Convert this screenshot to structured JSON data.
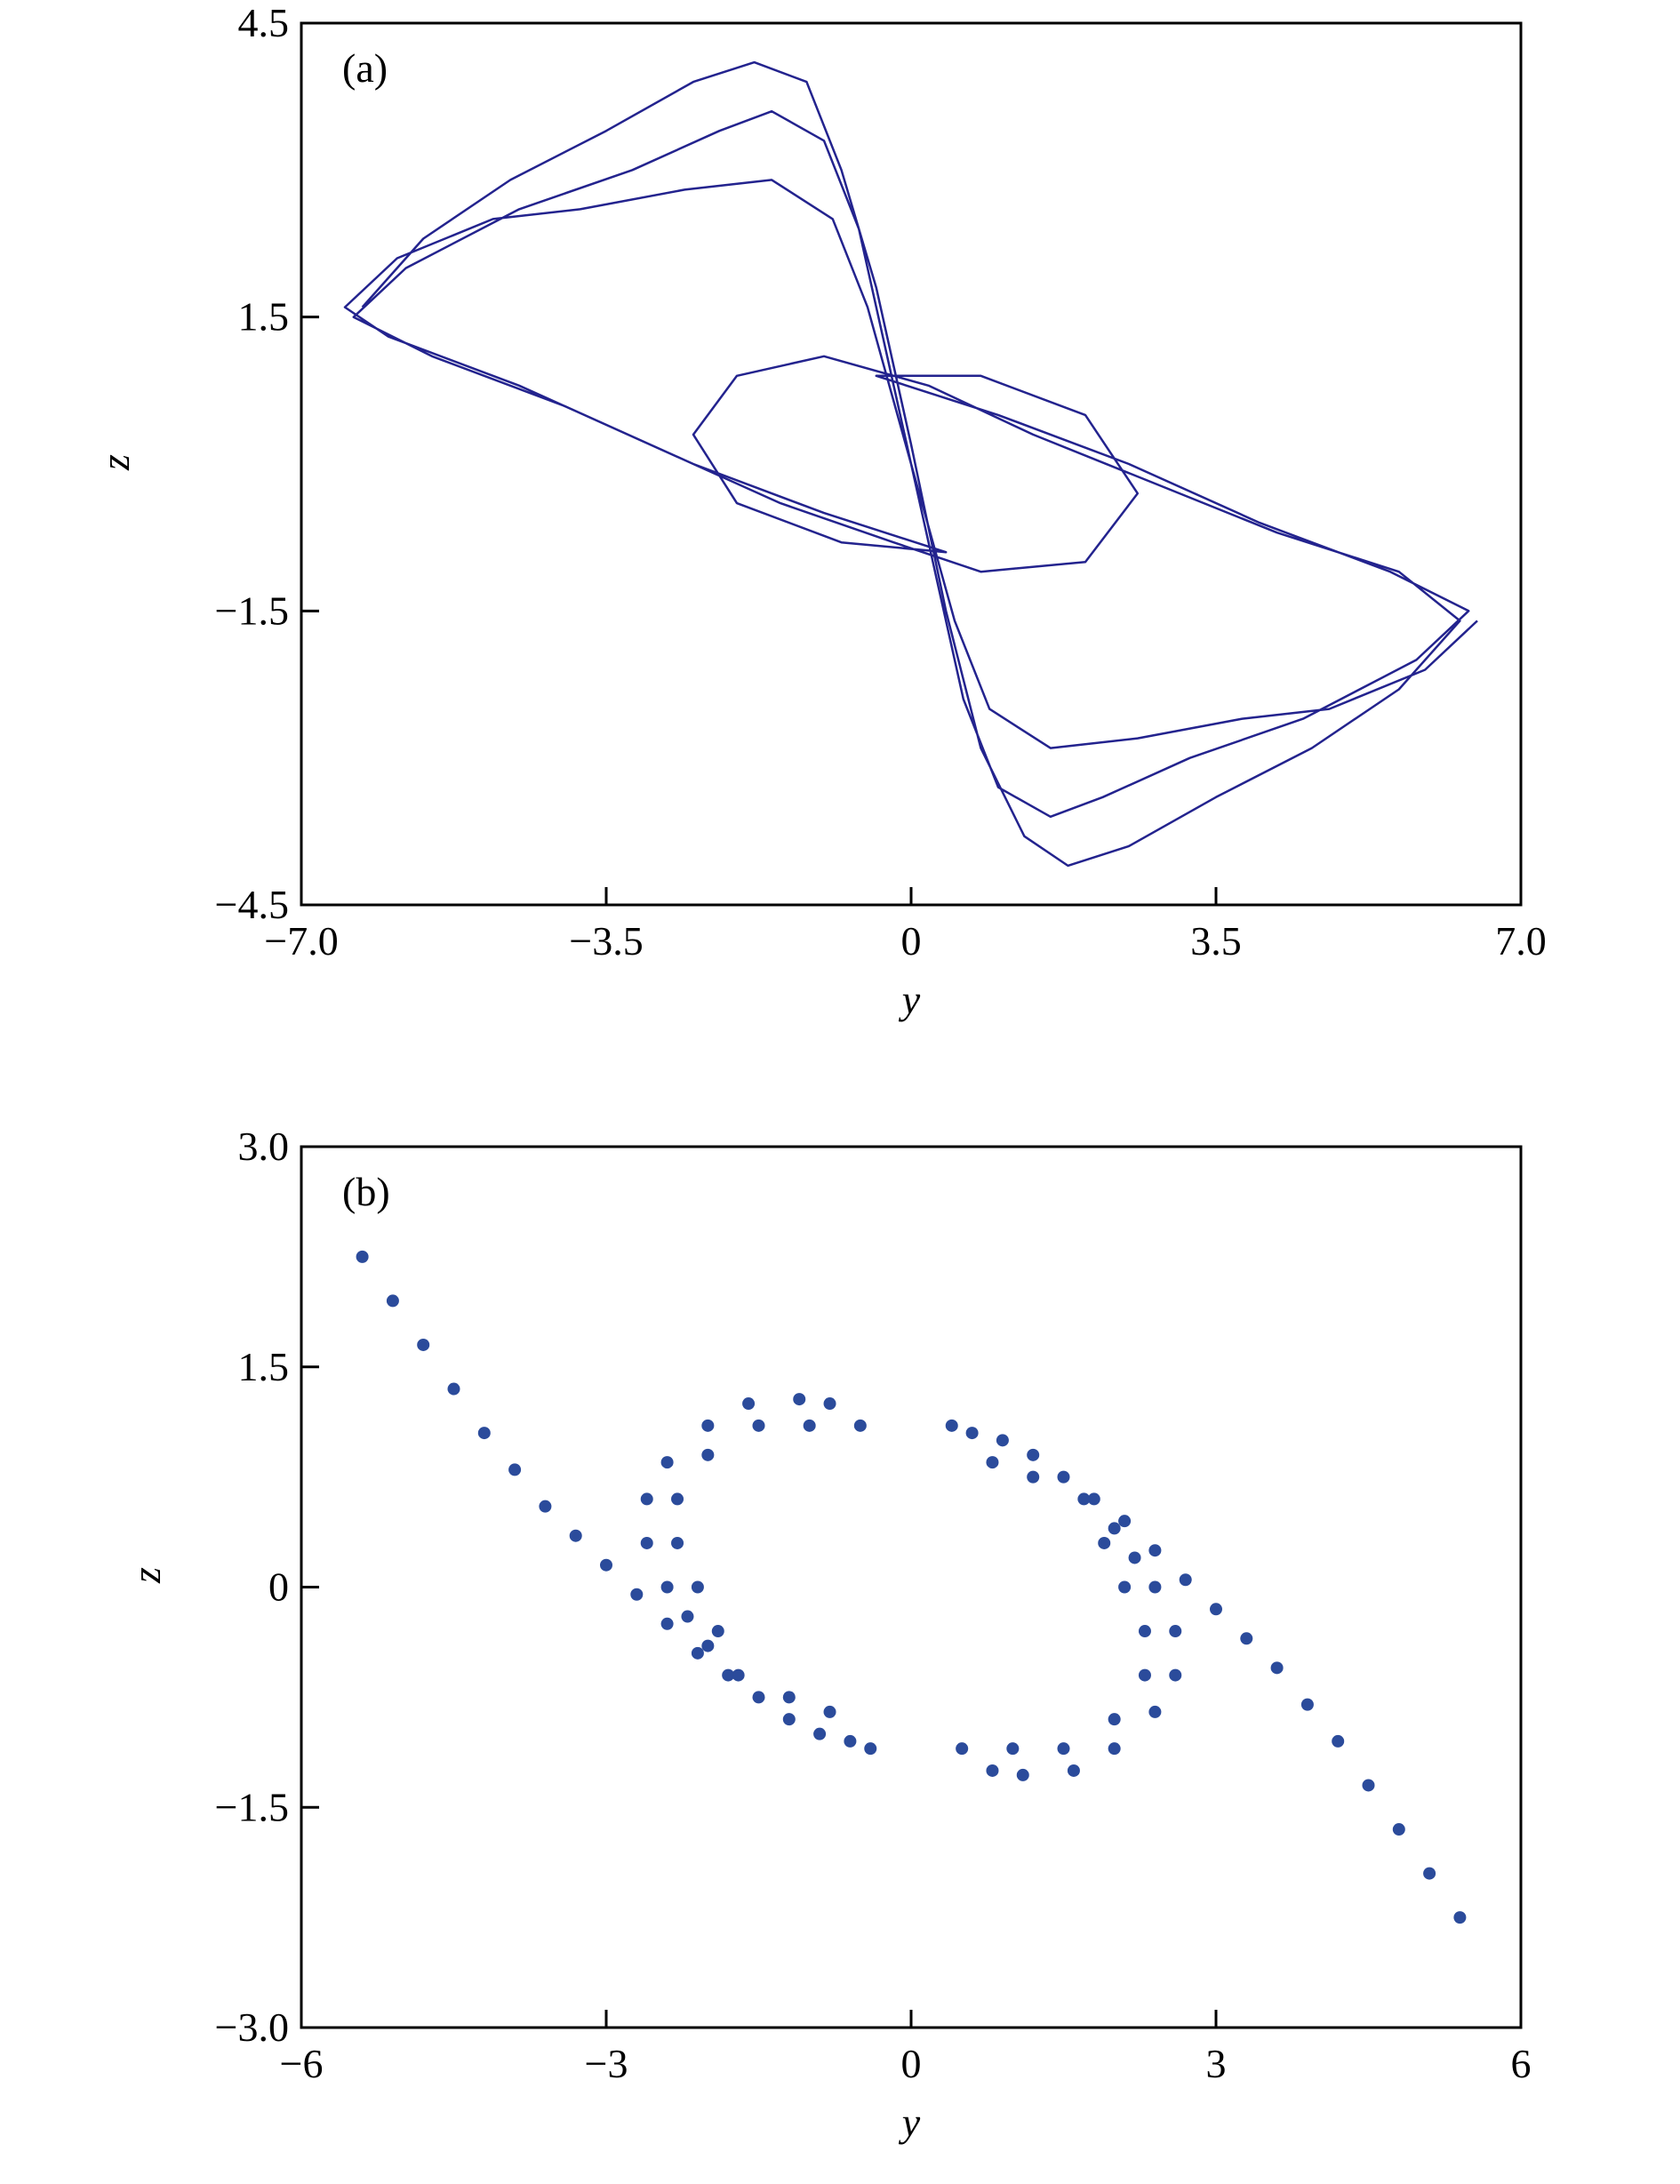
{
  "chart_data": [
    {
      "type": "line",
      "annotation": "(a)",
      "xlabel": "y",
      "ylabel": "z",
      "color": "#23238e",
      "xlim": [
        -7,
        7
      ],
      "ylim": [
        -4.5,
        4.5
      ],
      "xticks": [
        {
          "value": -7,
          "label": "−7.0"
        },
        {
          "value": -3.5,
          "label": "−3.5"
        },
        0,
        3.5,
        {
          "value": 7,
          "label": "7.0"
        }
      ],
      "yticks": [
        4.5,
        1.5,
        {
          "value": -1.5,
          "label": "−1.5"
        },
        {
          "value": -4.5,
          "label": "−4.5"
        }
      ],
      "x": [
        -6.3,
        -5.6,
        -4.6,
        -3.5,
        -2.5,
        -1.8,
        -1.2,
        -0.8,
        -0.4,
        0,
        0.4,
        0.8,
        1.3,
        1.8,
        2.5,
        3.5,
        4.6,
        5.6,
        6.3,
        5.6,
        4.2,
        2.8,
        1.4,
        0.2,
        -1.0,
        -2.0,
        -2.5,
        -2.0,
        -0.8,
        0.4,
        -1.0,
        -2.5,
        -4.0,
        -5.5,
        -6.4,
        -5.8,
        -4.5,
        -3.2,
        -2.2,
        -1.6,
        -1.0,
        -0.6,
        -0.3,
        0,
        0.3,
        0.6,
        1.0,
        1.6,
        2.2,
        3.2,
        4.5,
        5.8,
        6.4,
        5.5,
        4.0,
        2.5,
        1.0,
        -0.4,
        0.8,
        2.0,
        2.6,
        2.0,
        0.8,
        -0.2,
        -1.5,
        -3.0,
        -4.5,
        -6.0,
        -6.5,
        -5.9,
        -4.8,
        -3.8,
        -2.6,
        -1.6,
        -0.9,
        -0.5,
        0,
        0.5,
        0.9,
        1.6,
        2.6,
        3.8,
        4.8,
        5.9,
        6.5
      ],
      "values": [
        1.6,
        2.3,
        2.9,
        3.4,
        3.9,
        4.1,
        3.9,
        3.0,
        1.8,
        0.2,
        -1.5,
        -2.9,
        -3.8,
        -4.1,
        -3.9,
        -3.4,
        -2.9,
        -2.3,
        -1.6,
        -1.1,
        -0.7,
        -0.2,
        0.3,
        0.8,
        1.1,
        0.9,
        0.3,
        -0.4,
        -0.8,
        -0.9,
        -0.5,
        0.0,
        0.6,
        1.1,
        1.5,
        2.0,
        2.6,
        3.0,
        3.4,
        3.6,
        3.3,
        2.4,
        1.2,
        0,
        -1.2,
        -2.4,
        -3.3,
        -3.6,
        -3.4,
        -3.0,
        -2.6,
        -2.0,
        -1.5,
        -1.1,
        -0.6,
        0.0,
        0.5,
        0.9,
        0.9,
        0.5,
        -0.3,
        -1.0,
        -1.1,
        -0.8,
        -0.4,
        0.2,
        0.8,
        1.3,
        1.6,
        2.1,
        2.5,
        2.6,
        2.8,
        2.9,
        2.5,
        1.6,
        0,
        -1.6,
        -2.5,
        -2.9,
        -2.8,
        -2.6,
        -2.5,
        -2.1,
        -1.6
      ]
    },
    {
      "type": "scatter",
      "annotation": "(b)",
      "xlabel": "y",
      "ylabel": "z",
      "color": "#2b4b9b",
      "xlim": [
        -6,
        6
      ],
      "ylim": [
        -3,
        3
      ],
      "xticks": [
        {
          "value": -6,
          "label": "−6"
        },
        {
          "value": -3,
          "label": "−3"
        },
        0,
        3,
        6
      ],
      "yticks": [
        {
          "value": 3,
          "label": "3.0"
        },
        1.5,
        0,
        {
          "value": -1.5,
          "label": "−1.5"
        },
        {
          "value": -3,
          "label": "−3.0"
        }
      ],
      "x": [
        -5.4,
        -5.1,
        -4.8,
        -4.5,
        -4.2,
        -3.9,
        -3.6,
        -3.3,
        -3.0,
        -2.7,
        -2.4,
        -2.1,
        -1.8,
        -1.5,
        -1.2,
        -0.9,
        -0.6,
        -0.4,
        -0.5,
        -0.8,
        -1.1,
        -1.6,
        -2.0,
        -2.4,
        -2.6,
        -2.6,
        -2.4,
        -2.2,
        -2.0,
        -1.7,
        -1.2,
        -0.8,
        -1.0,
        -1.5,
        -2.0,
        -2.3,
        -2.3,
        -2.1,
        -1.9,
        5.4,
        5.1,
        4.8,
        4.5,
        4.2,
        3.9,
        3.6,
        3.3,
        3.0,
        2.7,
        2.4,
        2.1,
        1.8,
        1.5,
        1.2,
        0.9,
        0.6,
        0.4,
        0.5,
        0.8,
        1.1,
        1.6,
        2.0,
        2.4,
        2.6,
        2.6,
        2.4,
        2.2,
        2.0,
        1.7,
        1.2,
        0.8,
        1.0,
        1.5,
        2.0,
        2.3,
        2.3,
        2.1,
        1.9
      ],
      "values": [
        2.25,
        1.95,
        1.65,
        1.35,
        1.05,
        0.8,
        0.55,
        0.35,
        0.15,
        -0.05,
        -0.25,
        -0.45,
        -0.6,
        -0.75,
        -0.9,
        -1.0,
        -1.05,
        -1.1,
        1.1,
        1.25,
        1.28,
        1.25,
        1.1,
        0.85,
        0.6,
        0.3,
        0.0,
        -0.2,
        -0.4,
        -0.6,
        -0.75,
        -0.85,
        1.1,
        1.1,
        0.9,
        0.6,
        0.3,
        0.0,
        -0.3,
        -2.25,
        -1.95,
        -1.65,
        -1.35,
        -1.05,
        -0.8,
        -0.55,
        -0.35,
        -0.15,
        0.05,
        0.25,
        0.45,
        0.6,
        0.75,
        0.9,
        1.0,
        1.05,
        1.1,
        -1.1,
        -1.25,
        -1.28,
        -1.25,
        -1.1,
        -0.85,
        -0.6,
        -0.3,
        0.0,
        0.2,
        0.4,
        0.6,
        0.75,
        0.85,
        -1.1,
        -1.1,
        -0.9,
        -0.6,
        -0.3,
        0.0,
        0.3
      ]
    }
  ]
}
